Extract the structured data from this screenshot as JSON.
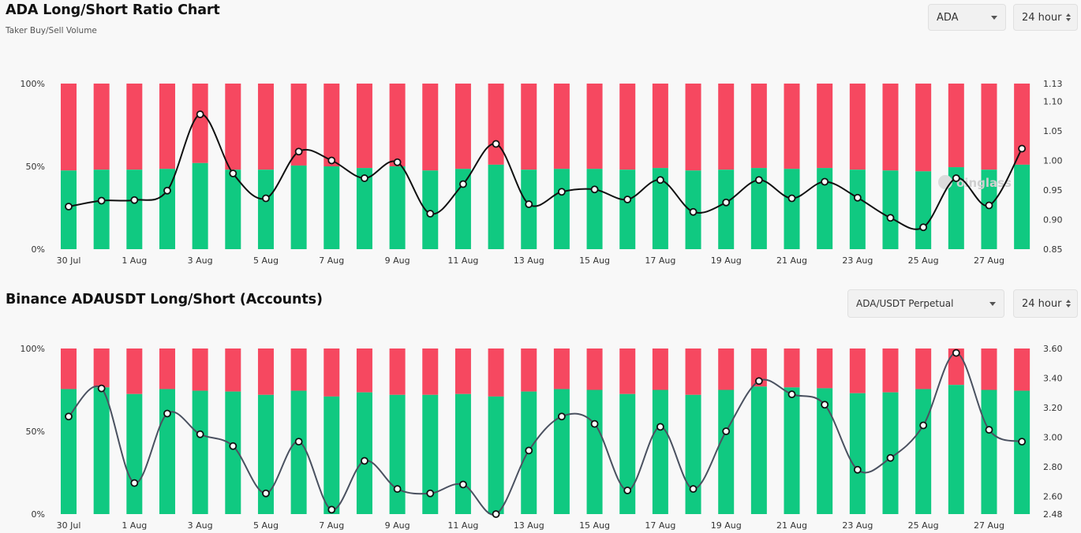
{
  "colors": {
    "long": "#10c981",
    "short": "#f64860",
    "line1": "#111111",
    "line2": "#4a5160",
    "marker_fill": "#ffffff",
    "watermark": "#cfcfcf"
  },
  "panel1": {
    "title": "ADA Long/Short Ratio Chart",
    "subtitle": "Taker Buy/Sell Volume",
    "coin_select": {
      "value": "ADA"
    },
    "interval_select": {
      "value": "24 hour"
    },
    "watermark": "oinglass"
  },
  "panel2": {
    "title": "Binance ADAUSDT Long/Short (Accounts)",
    "pair_select": {
      "value": "ADA/USDT Perpetual"
    },
    "interval_select": {
      "value": "24 hour"
    }
  },
  "chart_data": [
    {
      "type": "bar",
      "stacked": true,
      "x": [
        "30 Jul",
        "31 Jul",
        "1 Aug",
        "2 Aug",
        "3 Aug",
        "4 Aug",
        "5 Aug",
        "6 Aug",
        "7 Aug",
        "8 Aug",
        "9 Aug",
        "10 Aug",
        "11 Aug",
        "12 Aug",
        "13 Aug",
        "14 Aug",
        "15 Aug",
        "16 Aug",
        "17 Aug",
        "18 Aug",
        "19 Aug",
        "20 Aug",
        "21 Aug",
        "22 Aug",
        "23 Aug",
        "24 Aug",
        "25 Aug",
        "26 Aug",
        "27 Aug",
        "28 Aug"
      ],
      "x_tick_labels": [
        "30 Jul",
        "1 Aug",
        "3 Aug",
        "5 Aug",
        "7 Aug",
        "9 Aug",
        "11 Aug",
        "13 Aug",
        "15 Aug",
        "17 Aug",
        "19 Aug",
        "21 Aug",
        "23 Aug",
        "25 Aug",
        "27 Aug"
      ],
      "series": [
        {
          "axis": "left",
          "values": [
            47.5,
            48,
            48,
            48.5,
            52,
            48,
            48,
            50.5,
            50,
            49,
            50,
            47.5,
            48.5,
            51,
            48,
            48.5,
            48.5,
            48,
            49,
            47.5,
            48,
            49,
            48.5,
            49,
            48,
            47.5,
            47,
            49.5,
            48,
            51
          ]
        },
        {
          "axis": "left",
          "values": [
            52.5,
            52,
            52,
            51.5,
            48,
            52,
            52,
            49.5,
            50,
            51,
            50,
            52.5,
            51.5,
            49,
            52,
            51.5,
            51.5,
            52,
            51,
            52.5,
            52,
            51,
            51.5,
            51,
            52,
            52.5,
            53,
            50.5,
            52,
            49
          ]
        },
        {
          "type": "line",
          "axis": "right",
          "values": [
            0.922,
            0.932,
            0.933,
            0.949,
            1.078,
            0.978,
            0.936,
            1.015,
            1.0,
            0.97,
            0.997,
            0.91,
            0.96,
            1.028,
            0.926,
            0.947,
            0.951,
            0.934,
            0.967,
            0.913,
            0.929,
            0.967,
            0.936,
            0.964,
            0.937,
            0.903,
            0.887,
            0.97,
            0.924,
            1.02
          ]
        }
      ],
      "y_left": {
        "ticks": [
          "0%",
          "50%",
          "100%"
        ],
        "lim": [
          0,
          100
        ]
      },
      "y_right": {
        "ticks": [
          "0.85",
          "0.90",
          "0.95",
          "1.00",
          "1.05",
          "1.10",
          "1.13"
        ],
        "lim": [
          0.85,
          1.13
        ]
      }
    },
    {
      "type": "bar",
      "stacked": true,
      "x": [
        "30 Jul",
        "31 Jul",
        "1 Aug",
        "2 Aug",
        "3 Aug",
        "4 Aug",
        "5 Aug",
        "6 Aug",
        "7 Aug",
        "8 Aug",
        "9 Aug",
        "10 Aug",
        "11 Aug",
        "12 Aug",
        "13 Aug",
        "14 Aug",
        "15 Aug",
        "16 Aug",
        "17 Aug",
        "18 Aug",
        "19 Aug",
        "20 Aug",
        "21 Aug",
        "22 Aug",
        "23 Aug",
        "24 Aug",
        "25 Aug",
        "26 Aug",
        "27 Aug",
        "28 Aug"
      ],
      "x_tick_labels": [
        "30 Jul",
        "1 Aug",
        "3 Aug",
        "5 Aug",
        "7 Aug",
        "9 Aug",
        "11 Aug",
        "13 Aug",
        "15 Aug",
        "17 Aug",
        "19 Aug",
        "21 Aug",
        "23 Aug",
        "25 Aug",
        "27 Aug"
      ],
      "series": [
        {
          "axis": "left",
          "values": [
            75.5,
            76.5,
            72.5,
            75.5,
            74.5,
            74,
            72,
            74.5,
            71,
            73.5,
            72,
            72,
            72.5,
            71,
            74,
            75.5,
            75,
            72.5,
            75,
            72,
            75,
            77,
            76.5,
            76,
            73,
            73.5,
            75.5,
            78,
            75,
            74.5
          ]
        },
        {
          "axis": "left",
          "values": [
            24.5,
            23.5,
            27.5,
            24.5,
            25.5,
            26,
            28,
            25.5,
            29,
            26.5,
            28,
            28,
            27.5,
            29,
            26,
            24.5,
            25,
            27.5,
            25,
            28,
            25,
            23,
            23.5,
            24,
            27,
            26.5,
            24.5,
            22,
            25,
            25.5
          ]
        },
        {
          "type": "line",
          "axis": "right",
          "values": [
            3.14,
            3.33,
            2.69,
            3.16,
            3.02,
            2.94,
            2.62,
            2.97,
            2.51,
            2.84,
            2.65,
            2.62,
            2.68,
            2.48,
            2.91,
            3.14,
            3.09,
            2.64,
            3.07,
            2.65,
            3.04,
            3.38,
            3.29,
            3.22,
            2.78,
            2.86,
            3.08,
            3.57,
            3.05,
            2.97
          ]
        }
      ],
      "y_left": {
        "ticks": [
          "0%",
          "50%",
          "100%"
        ],
        "lim": [
          0,
          100
        ]
      },
      "y_right": {
        "ticks": [
          "2.48",
          "2.60",
          "2.80",
          "3.00",
          "3.20",
          "3.40",
          "3.60"
        ],
        "lim": [
          2.48,
          3.6
        ]
      }
    }
  ]
}
